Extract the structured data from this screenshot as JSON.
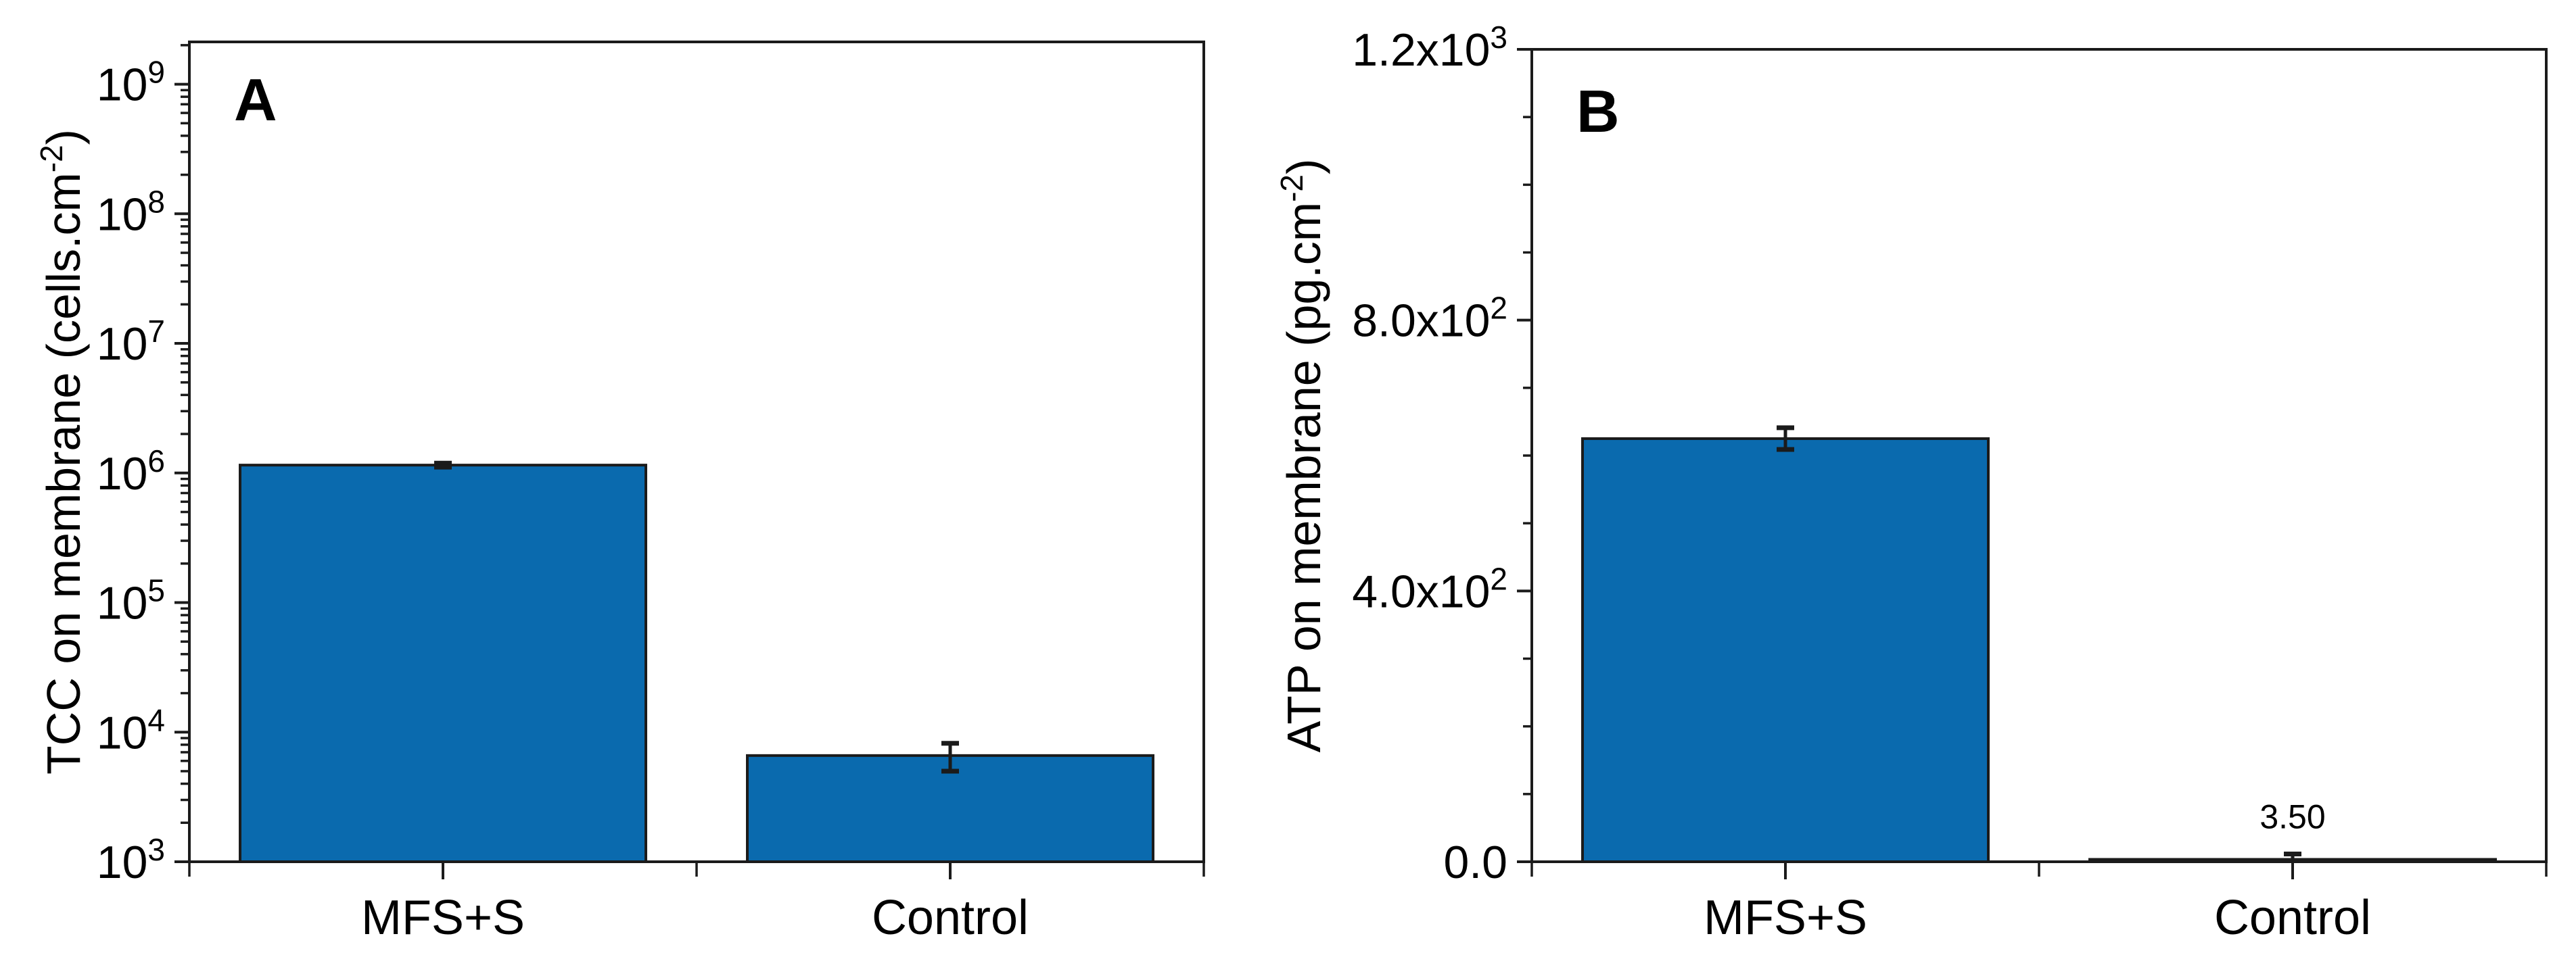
{
  "figure": {
    "background": "#ffffff",
    "panel_letters": [
      "A",
      "B"
    ]
  },
  "colors": {
    "bar_fill": "#0a6aae",
    "bar_edge": "#1b1b1b",
    "axis": "#1b1b1b",
    "text": "#000000"
  },
  "chart_data": [
    {
      "type": "bar",
      "panel_label": "A",
      "title": "",
      "xlabel": "",
      "ylabel": "TCC on membrane (cells.cm-2)",
      "ylabel_segments": [
        {
          "t": "TCC on membrane (cells.cm"
        },
        {
          "t": "-2",
          "sup": true
        },
        {
          "t": ")"
        }
      ],
      "categories": [
        "MFS+S",
        "Control"
      ],
      "series": [
        {
          "name": "TCC",
          "values": [
            1150000,
            6600
          ],
          "err_plus": [
            40000,
            1600
          ],
          "err_minus": [
            40000,
            1600
          ]
        }
      ],
      "value_labels": [
        "",
        ""
      ],
      "yaxis": {
        "scale": "log",
        "min": 1000,
        "max": 2120000000,
        "ticks": [
          {
            "v": 1000,
            "base": "10",
            "sup": "3"
          },
          {
            "v": 10000,
            "base": "10",
            "sup": "4"
          },
          {
            "v": 100000,
            "base": "10",
            "sup": "5"
          },
          {
            "v": 1000000,
            "base": "10",
            "sup": "6"
          },
          {
            "v": 10000000,
            "base": "10",
            "sup": "7"
          },
          {
            "v": 100000000,
            "base": "10",
            "sup": "8"
          },
          {
            "v": 1000000000,
            "base": "10",
            "sup": "9"
          }
        ]
      },
      "grid": false,
      "legend": "none"
    },
    {
      "type": "bar",
      "panel_label": "B",
      "title": "",
      "xlabel": "",
      "ylabel": "ATP on membrane (pg.cm-2)",
      "ylabel_segments": [
        {
          "t": "ATP on membrane (pg.cm"
        },
        {
          "t": "-2",
          "sup": true
        },
        {
          "t": ")"
        }
      ],
      "categories": [
        "MFS+S",
        "Control"
      ],
      "series": [
        {
          "name": "ATP",
          "values": [
            625,
            3.5
          ],
          "err_plus": [
            16,
            8
          ],
          "err_minus": [
            16,
            3.5
          ]
        }
      ],
      "value_labels": [
        "",
        "3.50"
      ],
      "yaxis": {
        "scale": "linear",
        "min": 0,
        "max": 1200,
        "minor_step": 100,
        "ticks": [
          {
            "v": 0,
            "base": "0.0"
          },
          {
            "v": 400,
            "base": "4.0x10",
            "sup": "2"
          },
          {
            "v": 800,
            "base": "8.0x10",
            "sup": "2"
          },
          {
            "v": 1200,
            "base": "1.2x10",
            "sup": "3"
          }
        ]
      },
      "grid": false,
      "legend": "none"
    }
  ]
}
